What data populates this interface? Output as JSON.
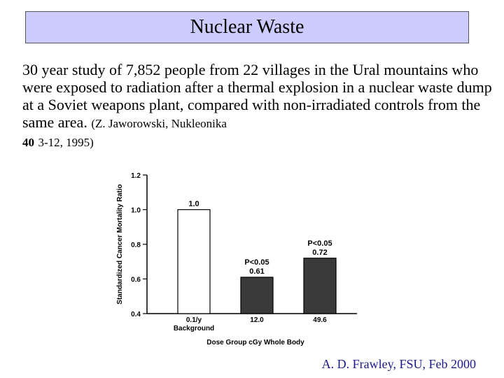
{
  "slide": {
    "title": "Nuclear Waste",
    "description": "30 year study of 7,852 people from 22 villages in the Ural mountains who were exposed to radiation after a thermal explosion in a nuclear waste dump at a Soviet weapons plant, compared with non-irradiated controls from the same area.",
    "citation_author": "(Z. Jaworowski, Nukleonika",
    "citation_volume": "40",
    "citation_pages": "3-12, 1995)",
    "credit": "A. D. Frawley, FSU, Feb 2000"
  },
  "chart_data": {
    "type": "bar",
    "ylabel": "Standardized Cancer Mortality Ratio",
    "xlabel": "Dose Group cGy Whole Body",
    "ylim": [
      0.4,
      1.2
    ],
    "yticks": [
      "0.4",
      "0.6",
      "0.8",
      "1.0",
      "1.2"
    ],
    "categories": [
      {
        "line1": "0.1/y",
        "line2": "Background"
      },
      {
        "line1": "12.0",
        "line2": ""
      },
      {
        "line1": "49.6",
        "line2": ""
      }
    ],
    "values": [
      1.0,
      0.61,
      0.72
    ],
    "value_labels": [
      "1.0",
      "0.61",
      "0.72"
    ],
    "significance": [
      "",
      "P<0.05",
      "P<0.05"
    ],
    "bar_colors": [
      "#ffffff",
      "#3a3a3a",
      "#3a3a3a"
    ]
  }
}
